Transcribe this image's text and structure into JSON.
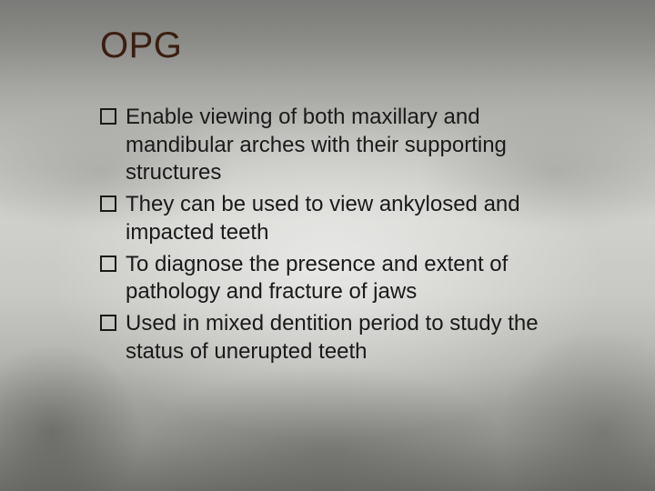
{
  "title": {
    "text": "OPG",
    "color": "#3a1e0f",
    "font_size_pt": 30
  },
  "body": {
    "text_color": "#1a1a1a",
    "bullet_box_border_color": "#1a1a1a",
    "font_size_pt": 18,
    "bullets": [
      {
        "text": "Enable viewing of both maxillary and mandibular arches with their supporting structures"
      },
      {
        "text": "They can be used to view ankylosed and impacted teeth"
      },
      {
        "text": "To diagnose the presence and extent of pathology and fracture of jaws"
      },
      {
        "text": "Used in mixed dentition period to study the status of unerupted teeth"
      }
    ]
  },
  "background": {
    "type": "panoramic-radiograph-photo",
    "dominant_colors": [
      "#7a7a78",
      "#bdbdb9",
      "#ffffff",
      "#6e6e6a"
    ]
  }
}
